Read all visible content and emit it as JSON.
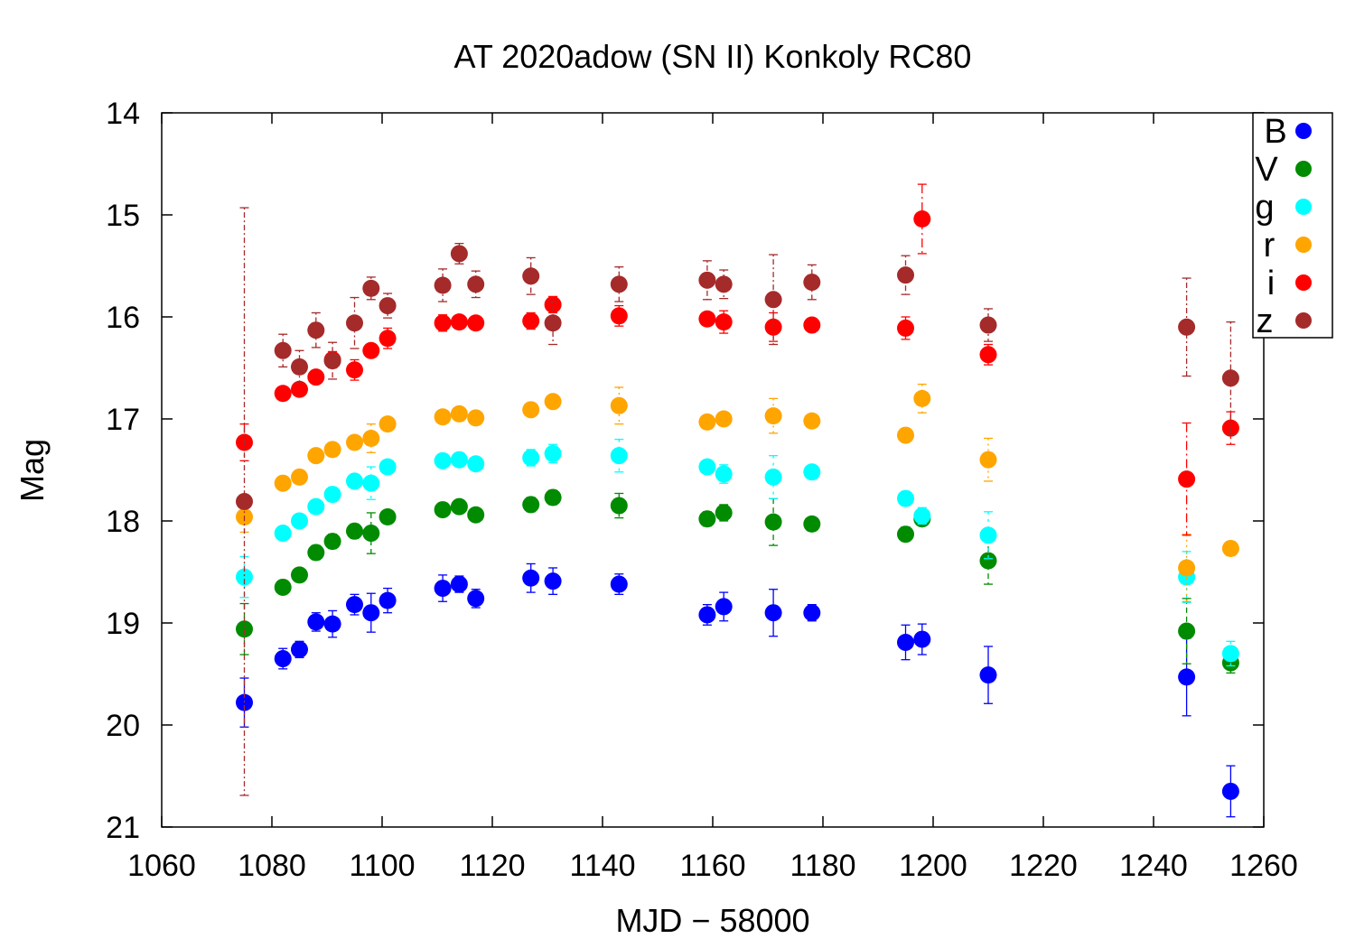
{
  "chart_data": {
    "type": "scatter",
    "title": "AT 2020adow (SN II) Konkoly RC80",
    "xlabel": "MJD − 58000",
    "ylabel": "Mag",
    "xlim": [
      1060,
      1260
    ],
    "ylim": [
      21,
      14
    ],
    "y_inverted": true,
    "xticks": [
      1060,
      1080,
      1100,
      1120,
      1140,
      1160,
      1180,
      1200,
      1220,
      1240,
      1260
    ],
    "yticks": [
      14,
      15,
      16,
      17,
      18,
      19,
      20,
      21
    ],
    "xtick_labels": [
      "1060",
      "1080",
      "1100",
      "1120",
      "1140",
      "1160",
      "1180",
      "1200",
      "1220",
      "1240",
      "1260"
    ],
    "ytick_labels": [
      "14",
      "15",
      "16",
      "17",
      "18",
      "19",
      "20",
      "21"
    ],
    "legend_position": "top-right",
    "grid": false,
    "series": [
      {
        "name": "B",
        "color": "#0000ff",
        "x": [
          1075,
          1082,
          1085,
          1088,
          1091,
          1095,
          1098,
          1101,
          1111,
          1114,
          1117,
          1127,
          1131,
          1143,
          1159,
          1162,
          1171,
          1178,
          1195,
          1198,
          1210,
          1246,
          1254
        ],
        "y": [
          19.78,
          19.35,
          19.26,
          18.99,
          19.01,
          18.82,
          18.9,
          18.78,
          18.66,
          18.62,
          18.76,
          18.56,
          18.59,
          18.62,
          18.92,
          18.84,
          18.9,
          18.9,
          19.19,
          19.16,
          19.51,
          19.53,
          20.65
        ],
        "err": [
          0.24,
          0.1,
          0.08,
          0.09,
          0.13,
          0.1,
          0.19,
          0.12,
          0.13,
          0.08,
          0.09,
          0.14,
          0.13,
          0.1,
          0.1,
          0.14,
          0.23,
          0.08,
          0.17,
          0.15,
          0.28,
          0.38,
          0.25
        ]
      },
      {
        "name": "V",
        "color": "#008b00",
        "x": [
          1075,
          1082,
          1085,
          1088,
          1091,
          1095,
          1098,
          1101,
          1111,
          1114,
          1117,
          1127,
          1131,
          1143,
          1159,
          1162,
          1171,
          1178,
          1195,
          1198,
          1210,
          1246,
          1254
        ],
        "y": [
          19.06,
          18.65,
          18.53,
          18.31,
          18.2,
          18.1,
          18.12,
          17.96,
          17.89,
          17.86,
          17.94,
          17.84,
          17.77,
          17.85,
          17.98,
          17.92,
          18.01,
          18.03,
          18.13,
          17.98,
          18.39,
          19.08,
          19.39
        ],
        "err": [
          0.25,
          0.06,
          0.06,
          0.07,
          0.07,
          0.07,
          0.2,
          0.06,
          0.06,
          0.06,
          0.06,
          0.07,
          0.07,
          0.12,
          0.07,
          0.08,
          0.23,
          0.06,
          0.07,
          0.06,
          0.23,
          0.32,
          0.1
        ]
      },
      {
        "name": "g",
        "color": "#00ffff",
        "x": [
          1075,
          1082,
          1085,
          1088,
          1091,
          1095,
          1098,
          1101,
          1111,
          1114,
          1117,
          1127,
          1131,
          1143,
          1159,
          1162,
          1171,
          1178,
          1195,
          1198,
          1210,
          1246,
          1254
        ],
        "y": [
          18.55,
          18.12,
          18.0,
          17.86,
          17.74,
          17.61,
          17.63,
          17.47,
          17.41,
          17.4,
          17.44,
          17.38,
          17.34,
          17.36,
          17.47,
          17.54,
          17.57,
          17.52,
          17.78,
          17.95,
          18.14,
          18.55,
          19.3
        ],
        "err": [
          0.2,
          0.05,
          0.05,
          0.06,
          0.07,
          0.06,
          0.16,
          0.06,
          0.05,
          0.05,
          0.06,
          0.08,
          0.09,
          0.16,
          0.06,
          0.09,
          0.21,
          0.06,
          0.07,
          0.08,
          0.23,
          0.25,
          0.12
        ]
      },
      {
        "name": "r",
        "color": "#ffa500",
        "x": [
          1075,
          1082,
          1085,
          1088,
          1091,
          1095,
          1098,
          1101,
          1111,
          1114,
          1117,
          1127,
          1131,
          1143,
          1159,
          1162,
          1171,
          1178,
          1195,
          1198,
          1210,
          1246,
          1254
        ],
        "y": [
          17.96,
          17.63,
          17.57,
          17.36,
          17.3,
          17.23,
          17.19,
          17.05,
          16.98,
          16.95,
          16.99,
          16.91,
          16.83,
          16.87,
          17.03,
          17.0,
          16.97,
          17.02,
          17.16,
          16.8,
          17.4,
          18.46,
          18.27
        ],
        "err": [
          0.15,
          0.05,
          0.05,
          0.05,
          0.05,
          0.05,
          0.14,
          0.05,
          0.05,
          0.05,
          0.05,
          0.06,
          0.06,
          0.18,
          0.05,
          0.06,
          0.17,
          0.05,
          0.06,
          0.14,
          0.21,
          0.33,
          0.07
        ]
      },
      {
        "name": "i",
        "color": "#ff0000",
        "x": [
          1075,
          1082,
          1085,
          1088,
          1091,
          1095,
          1098,
          1101,
          1111,
          1114,
          1117,
          1127,
          1131,
          1143,
          1159,
          1162,
          1171,
          1178,
          1195,
          1198,
          1210,
          1246,
          1254
        ],
        "y": [
          17.23,
          16.75,
          16.71,
          16.59,
          16.42,
          16.52,
          16.33,
          16.21,
          16.06,
          16.05,
          16.06,
          16.04,
          15.88,
          15.99,
          16.02,
          16.05,
          16.1,
          16.08,
          16.11,
          15.04,
          16.37,
          17.59,
          17.09
        ],
        "err": [
          0.18,
          0.06,
          0.06,
          0.06,
          0.08,
          0.1,
          0.06,
          0.1,
          0.08,
          0.05,
          0.05,
          0.08,
          0.08,
          0.1,
          0.05,
          0.11,
          0.14,
          0.05,
          0.11,
          0.34,
          0.1,
          0.55,
          0.16
        ]
      },
      {
        "name": "z",
        "color": "#a52a2a",
        "x": [
          1075,
          1082,
          1085,
          1088,
          1091,
          1095,
          1098,
          1101,
          1111,
          1114,
          1117,
          1127,
          1131,
          1143,
          1159,
          1162,
          1171,
          1178,
          1195,
          1198,
          1210,
          1246,
          1254
        ],
        "y": [
          17.81,
          16.33,
          16.49,
          16.13,
          16.43,
          16.06,
          15.72,
          15.89,
          15.69,
          15.38,
          15.68,
          15.6,
          16.06,
          15.68,
          15.64,
          15.68,
          15.83,
          15.66,
          15.59,
          null,
          16.08,
          16.1,
          16.6
        ],
        "err": [
          2.88,
          0.16,
          0.16,
          0.17,
          0.18,
          0.25,
          0.11,
          0.12,
          0.16,
          0.1,
          0.13,
          0.18,
          0.21,
          0.17,
          0.19,
          0.14,
          0.44,
          0.17,
          0.19,
          null,
          0.16,
          0.48,
          0.55
        ]
      }
    ]
  }
}
